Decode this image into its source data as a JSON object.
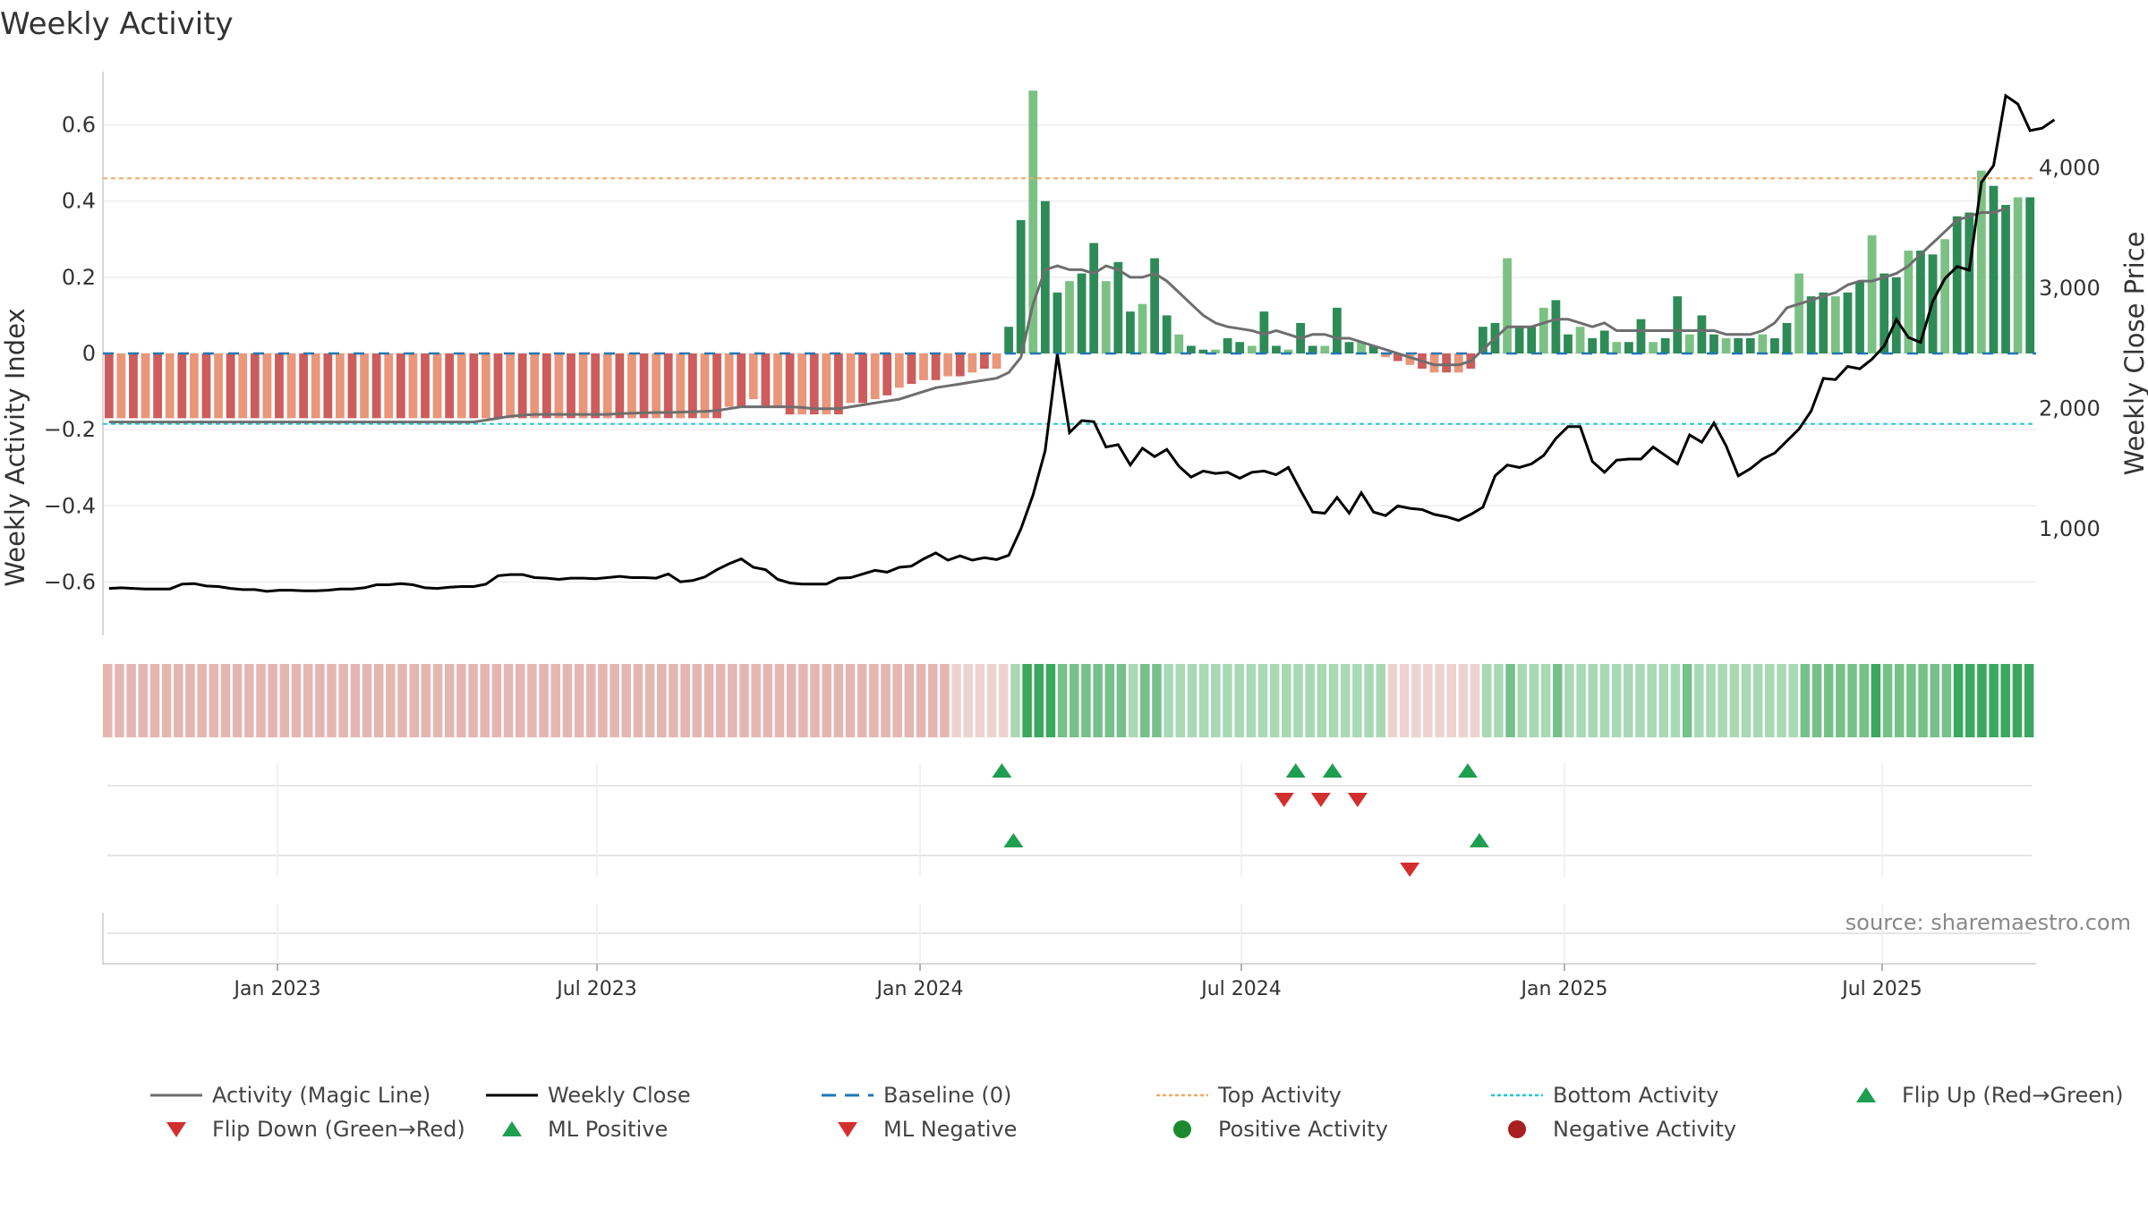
{
  "chart_data": {
    "type": "bar",
    "title": "Weekly Activity",
    "ylabel_left": "Weekly Activity Index",
    "ylabel_right": "Weekly Close Price",
    "source": "source: sharemaestro.com",
    "x_ticks": [
      "Jan 2023",
      "Jul 2023",
      "Jan 2024",
      "Jul 2024",
      "Jan 2025",
      "Jul 2025"
    ],
    "y_left_ticks": [
      "0.6",
      "0.4",
      "0.2",
      "0",
      "−0.2",
      "−0.4",
      "−0.6"
    ],
    "y_left_values": [
      0.6,
      0.4,
      0.2,
      0,
      -0.2,
      -0.4,
      -0.6
    ],
    "ylim_left": [
      -0.74,
      0.74
    ],
    "y_right_ticks": [
      "4,000",
      "3,000",
      "2,000",
      "1,000"
    ],
    "y_right_values": [
      4000,
      3000,
      2000,
      1000
    ],
    "ylim_right": [
      115,
      4800
    ],
    "top_activity": 0.46,
    "bottom_activity": -0.185,
    "baseline": 0,
    "activity": [
      -0.17,
      -0.17,
      -0.17,
      -0.17,
      -0.17,
      -0.17,
      -0.17,
      -0.17,
      -0.17,
      -0.17,
      -0.17,
      -0.17,
      -0.17,
      -0.17,
      -0.17,
      -0.17,
      -0.17,
      -0.17,
      -0.17,
      -0.17,
      -0.17,
      -0.17,
      -0.17,
      -0.17,
      -0.17,
      -0.17,
      -0.17,
      -0.17,
      -0.17,
      -0.17,
      -0.17,
      -0.17,
      -0.17,
      -0.17,
      -0.17,
      -0.17,
      -0.17,
      -0.17,
      -0.17,
      -0.17,
      -0.17,
      -0.17,
      -0.17,
      -0.17,
      -0.17,
      -0.17,
      -0.17,
      -0.17,
      -0.17,
      -0.17,
      -0.17,
      -0.14,
      -0.14,
      -0.12,
      -0.14,
      -0.14,
      -0.16,
      -0.16,
      -0.16,
      -0.16,
      -0.16,
      -0.13,
      -0.13,
      -0.12,
      -0.11,
      -0.09,
      -0.08,
      -0.07,
      -0.07,
      -0.06,
      -0.06,
      -0.05,
      -0.04,
      -0.04,
      0.07,
      0.35,
      0.69,
      0.4,
      0.16,
      0.19,
      0.21,
      0.29,
      0.19,
      0.24,
      0.11,
      0.13,
      0.25,
      0.1,
      0.05,
      0.02,
      0.01,
      0.01,
      0.04,
      0.03,
      0.02,
      0.11,
      0.02,
      0.01,
      0.08,
      0.02,
      0.02,
      0.12,
      0.03,
      0.03,
      0.02,
      -0.01,
      -0.02,
      -0.03,
      -0.04,
      -0.05,
      -0.05,
      -0.05,
      -0.04,
      0.07,
      0.08,
      0.25,
      0.07,
      0.07,
      0.12,
      0.14,
      0.05,
      0.07,
      0.04,
      0.06,
      0.03,
      0.03,
      0.09,
      0.03,
      0.04,
      0.15,
      0.05,
      0.1,
      0.05,
      0.04,
      0.04,
      0.04,
      0.05,
      0.04,
      0.08,
      0.21,
      0.15,
      0.16,
      0.15,
      0.16,
      0.19,
      0.31,
      0.21,
      0.2,
      0.27,
      0.27,
      0.26,
      0.3,
      0.36,
      0.37,
      0.48,
      0.44,
      0.39,
      0.41,
      0.41
    ],
    "magic_line": [
      -0.18,
      -0.18,
      -0.18,
      -0.18,
      -0.18,
      -0.18,
      -0.18,
      -0.18,
      -0.18,
      -0.18,
      -0.18,
      -0.18,
      -0.18,
      -0.18,
      -0.18,
      -0.18,
      -0.18,
      -0.18,
      -0.18,
      -0.18,
      -0.18,
      -0.18,
      -0.18,
      -0.18,
      -0.18,
      -0.18,
      -0.18,
      -0.18,
      -0.18,
      -0.18,
      -0.18,
      -0.175,
      -0.17,
      -0.165,
      -0.162,
      -0.16,
      -0.16,
      -0.16,
      -0.16,
      -0.16,
      -0.16,
      -0.16,
      -0.158,
      -0.157,
      -0.156,
      -0.155,
      -0.155,
      -0.154,
      -0.153,
      -0.152,
      -0.15,
      -0.145,
      -0.14,
      -0.14,
      -0.14,
      -0.14,
      -0.14,
      -0.142,
      -0.145,
      -0.145,
      -0.145,
      -0.14,
      -0.135,
      -0.13,
      -0.125,
      -0.12,
      -0.11,
      -0.1,
      -0.09,
      -0.085,
      -0.08,
      -0.075,
      -0.07,
      -0.065,
      -0.05,
      -0.01,
      0.13,
      0.22,
      0.23,
      0.22,
      0.22,
      0.21,
      0.23,
      0.22,
      0.2,
      0.2,
      0.21,
      0.19,
      0.16,
      0.13,
      0.1,
      0.08,
      0.07,
      0.065,
      0.06,
      0.05,
      0.06,
      0.05,
      0.04,
      0.05,
      0.05,
      0.04,
      0.04,
      0.03,
      0.02,
      0.01,
      0.0,
      -0.01,
      -0.02,
      -0.03,
      -0.03,
      -0.03,
      -0.02,
      0.01,
      0.04,
      0.07,
      0.07,
      0.07,
      0.08,
      0.09,
      0.09,
      0.08,
      0.07,
      0.08,
      0.06,
      0.06,
      0.06,
      0.06,
      0.06,
      0.06,
      0.06,
      0.06,
      0.06,
      0.05,
      0.05,
      0.05,
      0.06,
      0.08,
      0.12,
      0.13,
      0.14,
      0.15,
      0.16,
      0.18,
      0.19,
      0.19,
      0.2,
      0.21,
      0.23,
      0.26,
      0.29,
      0.32,
      0.35,
      0.36,
      0.37,
      0.37,
      0.38
    ],
    "weekly_close": [
      505,
      510,
      505,
      500,
      500,
      500,
      540,
      545,
      525,
      520,
      505,
      495,
      495,
      480,
      490,
      490,
      485,
      485,
      490,
      500,
      500,
      510,
      535,
      535,
      545,
      535,
      510,
      505,
      515,
      520,
      520,
      540,
      610,
      620,
      620,
      595,
      590,
      580,
      590,
      590,
      585,
      595,
      605,
      595,
      595,
      590,
      625,
      560,
      570,
      600,
      660,
      710,
      750,
      680,
      660,
      580,
      550,
      540,
      540,
      540,
      590,
      595,
      625,
      655,
      640,
      680,
      690,
      750,
      800,
      740,
      775,
      740,
      760,
      745,
      780,
      1000,
      1280,
      1650,
      2450,
      1800,
      1900,
      1890,
      1680,
      1700,
      1530,
      1670,
      1600,
      1660,
      1520,
      1430,
      1480,
      1460,
      1470,
      1420,
      1470,
      1480,
      1450,
      1510,
      1320,
      1140,
      1130,
      1260,
      1130,
      1300,
      1140,
      1110,
      1190,
      1170,
      1160,
      1120,
      1100,
      1070,
      1120,
      1180,
      1440,
      1530,
      1510,
      1540,
      1610,
      1750,
      1850,
      1850,
      1560,
      1470,
      1570,
      1580,
      1580,
      1680,
      1610,
      1540,
      1780,
      1720,
      1880,
      1690,
      1440,
      1500,
      1580,
      1630,
      1730,
      1830,
      1980,
      2250,
      2240,
      2350,
      2330,
      2410,
      2520,
      2740,
      2590,
      2550,
      2890,
      3080,
      3180,
      3150,
      3880,
      4020,
      4600,
      4530,
      4310,
      4330,
      4400
    ],
    "ml_state_bar_count": 164,
    "ml_state_colors": {
      "neg_light": "#e4b6b2",
      "neg_fade": "#ecd3d0",
      "pos_light": "#a9d8b4",
      "pos_mid": "#76c08a",
      "pos_strong": "#3aa85e"
    },
    "flip_up_positions": [
      0.465,
      0.617,
      0.636,
      0.706
    ],
    "flip_down_positions": [
      0.611,
      0.63,
      0.649
    ],
    "ml_positive_positions": [
      0.471,
      0.712
    ],
    "ml_negative_positions": [
      0.676
    ],
    "colors": {
      "bar_pos_dark": "#2e8b57",
      "bar_pos_light": "#7cc184",
      "bar_neg_dark": "#cd5c5c",
      "bar_neg_light": "#e9967a",
      "magic_line": "#6e6e6e",
      "weekly_close": "#000000",
      "baseline": "#1f77b4",
      "top_activity": "#f0a860",
      "bottom_activity": "#1ec8d8",
      "flip_up": "#1e9e50",
      "flip_down": "#d32f2f",
      "positive_activity": "#1e8a2e",
      "negative_activity": "#a81f1f"
    },
    "legend": [
      {
        "label": "Activity (Magic Line)",
        "marker": "line-gray"
      },
      {
        "label": "Weekly Close",
        "marker": "line-black"
      },
      {
        "label": "Baseline (0)",
        "marker": "dash-blue"
      },
      {
        "label": "Top Activity",
        "marker": "dot-orange"
      },
      {
        "label": "Bottom Activity",
        "marker": "dot-cyan"
      },
      {
        "label": "Flip Up (Red→Green)",
        "marker": "triangle-up-green"
      },
      {
        "label": "Flip Down (Green→Red)",
        "marker": "triangle-down-red"
      },
      {
        "label": "ML Positive",
        "marker": "triangle-up-green"
      },
      {
        "label": "ML Negative",
        "marker": "triangle-down-red"
      },
      {
        "label": "Positive Activity",
        "marker": "circle-green"
      },
      {
        "label": "Negative Activity",
        "marker": "circle-darkred"
      }
    ]
  }
}
